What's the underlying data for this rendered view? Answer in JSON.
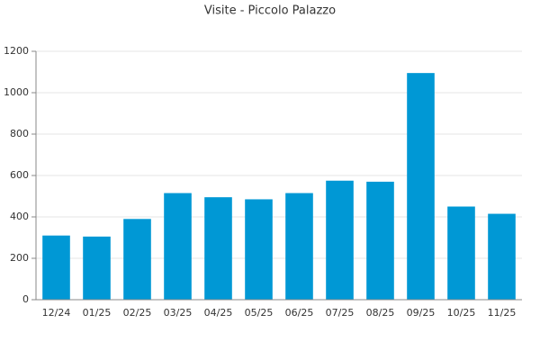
{
  "chart_data": {
    "type": "bar",
    "title": "Visite - Piccolo Palazzo",
    "categories": [
      "12/24",
      "01/25",
      "02/25",
      "03/25",
      "04/25",
      "05/25",
      "06/25",
      "07/25",
      "08/25",
      "09/25",
      "10/25",
      "11/25"
    ],
    "values": [
      310,
      305,
      390,
      515,
      495,
      485,
      515,
      575,
      570,
      1095,
      450,
      415
    ],
    "color": "#0098d5",
    "ylim": [
      0,
      1200
    ],
    "yticks": [
      0,
      200,
      400,
      600,
      800,
      1000,
      1200
    ],
    "grid": true
  }
}
